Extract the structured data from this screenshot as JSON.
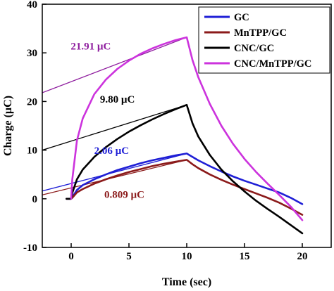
{
  "chart_data": {
    "type": "line",
    "xlabel": "Time (sec)",
    "ylabel": "Charge (µC)",
    "xlim": [
      -2.5,
      22.5
    ],
    "ylim": [
      -10,
      40
    ],
    "xticks": [
      0,
      5,
      10,
      15,
      20
    ],
    "yticks": [
      -10,
      0,
      10,
      20,
      30,
      40
    ],
    "grid": false,
    "legend_position": "top-right",
    "series": [
      {
        "name": "GC",
        "color": "#1f1fd6",
        "x": [
          -0.4,
          0,
          0.1,
          0.5,
          1,
          2,
          3,
          4,
          5,
          6,
          7,
          8,
          9,
          10,
          10.5,
          11,
          12,
          13,
          14,
          15,
          16,
          17,
          18,
          19,
          20
        ],
        "y": [
          0,
          0,
          0.3,
          1.8,
          2.8,
          4.0,
          5.0,
          5.9,
          6.6,
          7.3,
          7.9,
          8.4,
          8.9,
          9.3,
          8.6,
          7.9,
          6.7,
          5.6,
          4.6,
          3.7,
          2.9,
          2.1,
          1.3,
          0.2,
          -1.1
        ]
      },
      {
        "name": "MnTPP/GC",
        "color": "#8b1a1a",
        "x": [
          -0.4,
          0,
          0.1,
          0.5,
          1,
          2,
          3,
          4,
          5,
          6,
          7,
          8,
          9,
          10,
          10.5,
          11,
          12,
          13,
          14,
          15,
          16,
          17,
          18,
          19,
          20
        ],
        "y": [
          0,
          0,
          0.2,
          1.3,
          2.0,
          3.1,
          4.0,
          4.8,
          5.5,
          6.1,
          6.7,
          7.2,
          7.6,
          8.0,
          7.1,
          6.3,
          5.0,
          3.9,
          2.9,
          2.0,
          1.1,
          0.2,
          -0.8,
          -2.0,
          -3.3
        ]
      },
      {
        "name": "CNC/GC",
        "color": "#000000",
        "x": [
          -0.4,
          0,
          0.1,
          0.5,
          1,
          2,
          3,
          4,
          5,
          6,
          7,
          8,
          9,
          10,
          10.5,
          11,
          12,
          13,
          14,
          15,
          16,
          17,
          18,
          19,
          20
        ],
        "y": [
          0,
          0,
          1.2,
          4.0,
          6.0,
          8.6,
          10.6,
          12.3,
          13.8,
          15.1,
          16.3,
          17.4,
          18.4,
          19.3,
          15.5,
          12.8,
          9.0,
          6.0,
          3.6,
          1.5,
          -0.4,
          -2.1,
          -3.7,
          -5.4,
          -7.1
        ]
      },
      {
        "name": "CNC/MnTPP/GC",
        "color": "#cc33dd",
        "x": [
          0,
          0.1,
          0.5,
          1,
          2,
          3,
          4,
          5,
          6,
          7,
          8,
          9,
          10,
          10.5,
          11,
          12,
          13,
          14,
          15,
          16,
          17,
          18,
          19,
          20
        ],
        "y": [
          0,
          4.0,
          12.0,
          16.5,
          21.5,
          24.5,
          26.7,
          28.4,
          29.8,
          30.9,
          31.8,
          32.6,
          33.2,
          28.5,
          25.0,
          19.5,
          15.0,
          11.3,
          8.2,
          5.5,
          3.1,
          0.8,
          -1.6,
          -4.4
        ]
      }
    ],
    "fit_lines": [
      {
        "series": "GC",
        "color": "#1f1fd6",
        "x": [
          -2.5,
          10
        ],
        "y": [
          1.6,
          9.3
        ]
      },
      {
        "series": "MnTPP/GC",
        "color": "#8b1a1a",
        "x": [
          -2.5,
          10
        ],
        "y": [
          0.8,
          8.0
        ]
      },
      {
        "series": "CNC/GC",
        "color": "#000000",
        "x": [
          -2.5,
          10
        ],
        "y": [
          10.0,
          19.3
        ]
      },
      {
        "series": "CNC/MnTPP/GC",
        "color": "#8e1c9e",
        "x": [
          -2.5,
          10
        ],
        "y": [
          21.8,
          33.2
        ]
      }
    ],
    "annotations": [
      {
        "text": "21.91 µC",
        "color": "#8e1c9e",
        "x": 1.7,
        "y": 30.7
      },
      {
        "text": "9.80 µC",
        "color": "#000000",
        "x": 4.0,
        "y": 19.8
      },
      {
        "text": "2.06 µC",
        "color": "#1f1fd6",
        "x": 3.5,
        "y": 9.2
      },
      {
        "text": "0.809 µC",
        "color": "#8b1a1a",
        "x": 4.6,
        "y": 0.2
      }
    ]
  }
}
